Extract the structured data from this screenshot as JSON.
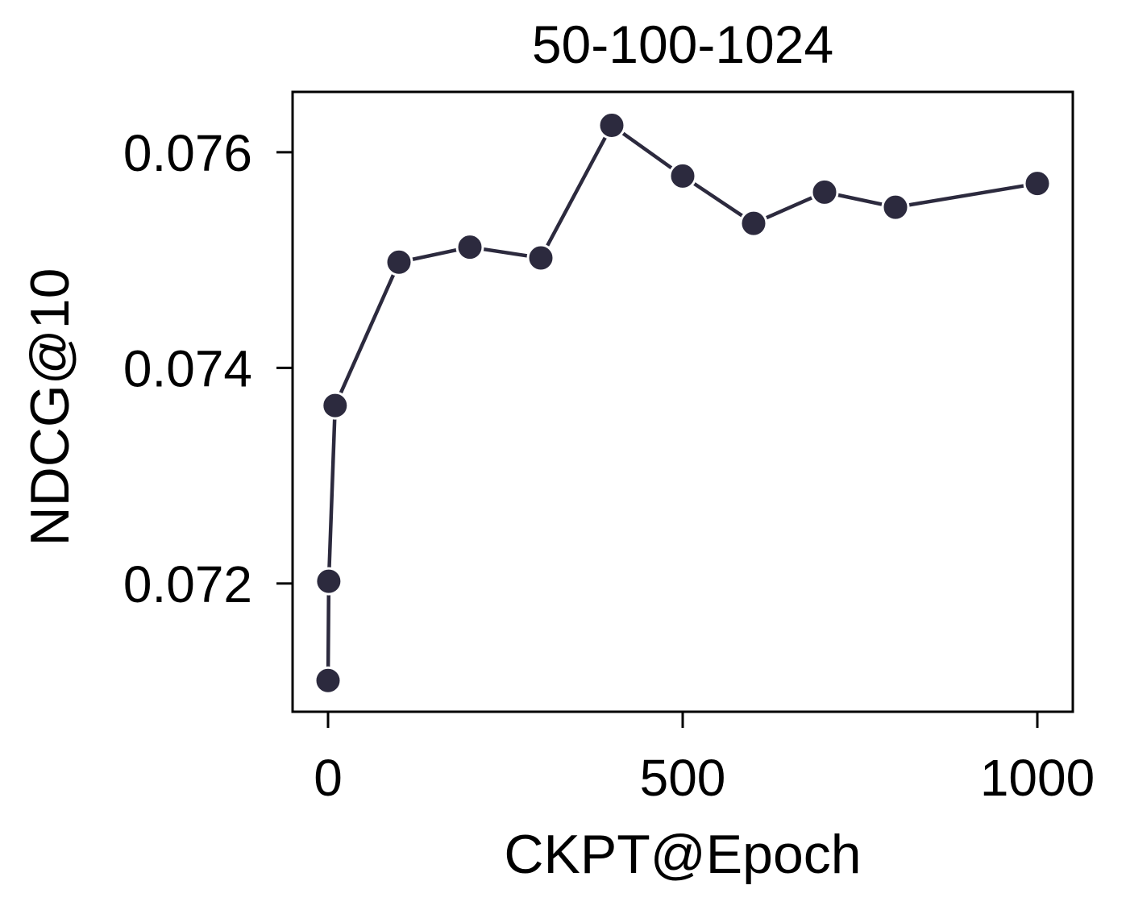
{
  "chart_data": {
    "type": "line",
    "title": "50-100-1024",
    "xlabel": "CKPT@Epoch",
    "ylabel": "NDCG@10",
    "x_ticks": [
      0,
      500,
      1000
    ],
    "y_ticks": [
      0.072,
      0.074,
      0.076
    ],
    "x_tick_labels": [
      "0",
      "500",
      "1000"
    ],
    "y_tick_labels": [
      "0.072",
      "0.074",
      "0.076"
    ],
    "xlim": [
      -50,
      1050
    ],
    "ylim": [
      0.07081,
      0.07656
    ],
    "grid": false,
    "legend": "none",
    "series": [
      {
        "color": "#2c2a3e",
        "marker": "circle",
        "points": [
          {
            "x": 0,
            "y": 0.0711
          },
          {
            "x": 1,
            "y": 0.07202
          },
          {
            "x": 10,
            "y": 0.07365
          },
          {
            "x": 100,
            "y": 0.07498
          },
          {
            "x": 200,
            "y": 0.07512
          },
          {
            "x": 300,
            "y": 0.07502
          },
          {
            "x": 400,
            "y": 0.07625
          },
          {
            "x": 500,
            "y": 0.07578
          },
          {
            "x": 600,
            "y": 0.07534
          },
          {
            "x": 700,
            "y": 0.07563
          },
          {
            "x": 800,
            "y": 0.07549
          },
          {
            "x": 1000,
            "y": 0.07571
          }
        ]
      }
    ]
  }
}
